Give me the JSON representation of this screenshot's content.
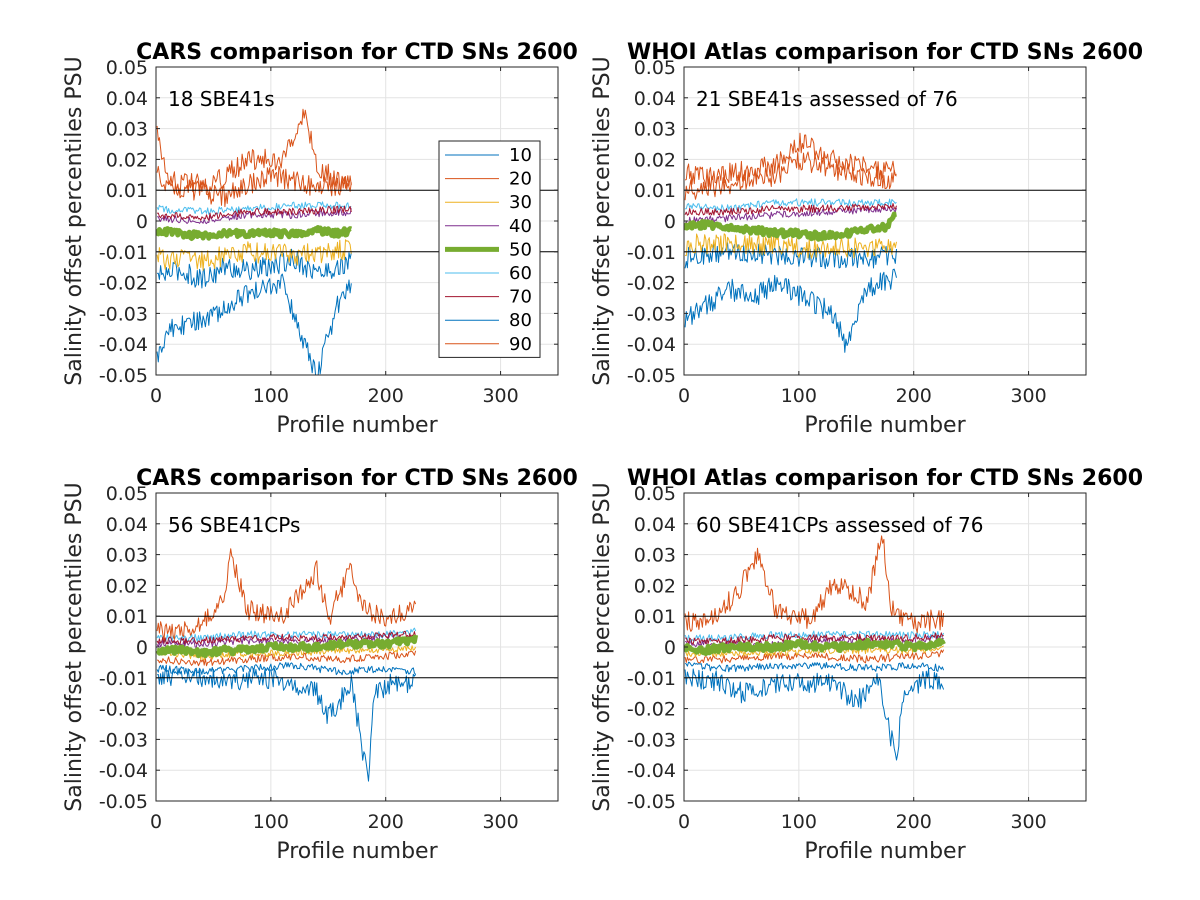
{
  "chart_data": [
    {
      "type": "line",
      "title": "CARS comparison for CTD SNs 2600",
      "xlabel": "Profile number",
      "ylabel": "Salinity offset percentiles PSU",
      "xlim": [
        0,
        350
      ],
      "ylim": [
        -0.05,
        0.05
      ],
      "xticks": [
        "0",
        "100",
        "200",
        "300"
      ],
      "yticks": [
        "-0.05",
        "-0.04",
        "-0.03",
        "-0.02",
        "-0.01",
        "0",
        "0.01",
        "0.02",
        "0.03",
        "0.04",
        "0.05"
      ],
      "grid": true,
      "reference_lines": [
        0.01,
        -0.01
      ],
      "annotation": "18 SBE41s",
      "legend_position": "inside right",
      "x_max_profile": 170,
      "series": [
        {
          "name": "10",
          "color": "#0072BD",
          "width": 1,
          "key_x": [
            0,
            20,
            40,
            60,
            80,
            100,
            120,
            140,
            160,
            170
          ],
          "key_y": [
            -0.018,
            -0.016,
            -0.019,
            -0.015,
            -0.016,
            -0.015,
            -0.012,
            -0.017,
            -0.015,
            -0.013
          ]
        },
        {
          "name": "20",
          "color": "#D95319",
          "width": 1,
          "key_x": [
            0,
            10,
            30,
            60,
            100,
            130,
            150,
            170
          ],
          "key_y": [
            0.015,
            0.012,
            0.01,
            0.008,
            0.015,
            0.012,
            0.011,
            0.012
          ]
        },
        {
          "name": "30",
          "color": "#EDB120",
          "width": 1,
          "key_x": [
            0,
            40,
            80,
            120,
            170
          ],
          "key_y": [
            -0.012,
            -0.013,
            -0.01,
            -0.011,
            -0.009
          ]
        },
        {
          "name": "40",
          "color": "#7E2F8E",
          "width": 1,
          "key_x": [
            0,
            40,
            80,
            120,
            170
          ],
          "key_y": [
            0.001,
            0.0,
            0.002,
            0.002,
            0.003
          ]
        },
        {
          "name": "50",
          "color": "#77AC30",
          "width": 5,
          "key_x": [
            0,
            20,
            40,
            60,
            80,
            100,
            120,
            140,
            160,
            170
          ],
          "key_y": [
            -0.003,
            -0.004,
            -0.005,
            -0.004,
            -0.004,
            -0.004,
            -0.004,
            -0.003,
            -0.004,
            -0.003
          ]
        },
        {
          "name": "60",
          "color": "#4DBEEE",
          "width": 1,
          "key_x": [
            0,
            40,
            80,
            120,
            170
          ],
          "key_y": [
            0.004,
            0.003,
            0.004,
            0.005,
            0.005
          ]
        },
        {
          "name": "70",
          "color": "#A2142F",
          "width": 1,
          "key_x": [
            0,
            40,
            80,
            120,
            170
          ],
          "key_y": [
            0.002,
            0.001,
            0.003,
            0.003,
            0.004
          ]
        },
        {
          "name": "80",
          "color": "#0072BD",
          "width": 1,
          "key_x": [
            0,
            10,
            30,
            50,
            80,
            110,
            130,
            140,
            160,
            170
          ],
          "key_y": [
            -0.045,
            -0.035,
            -0.033,
            -0.03,
            -0.024,
            -0.02,
            -0.04,
            -0.05,
            -0.025,
            -0.022
          ]
        },
        {
          "name": "90",
          "color": "#D95319",
          "width": 1,
          "key_x": [
            0,
            5,
            20,
            50,
            80,
            110,
            130,
            140,
            160,
            170
          ],
          "key_y": [
            0.032,
            0.018,
            0.012,
            0.012,
            0.02,
            0.02,
            0.035,
            0.018,
            0.012,
            0.012
          ]
        }
      ]
    },
    {
      "type": "line",
      "title": "WHOI Atlas comparison for CTD SNs 2600",
      "xlabel": "Profile number",
      "ylabel": "Salinity offset percentiles PSU",
      "xlim": [
        0,
        350
      ],
      "ylim": [
        -0.05,
        0.05
      ],
      "xticks": [
        "0",
        "100",
        "200",
        "300"
      ],
      "yticks": [
        "-0.05",
        "-0.04",
        "-0.03",
        "-0.02",
        "-0.01",
        "0",
        "0.01",
        "0.02",
        "0.03",
        "0.04",
        "0.05"
      ],
      "grid": true,
      "reference_lines": [
        0.01,
        -0.01
      ],
      "annotation": "21 SBE41s assessed of 76",
      "x_max_profile": 185,
      "series": [
        {
          "name": "10",
          "color": "#0072BD",
          "width": 1,
          "key_x": [
            0,
            40,
            80,
            120,
            160,
            185
          ],
          "key_y": [
            -0.012,
            -0.01,
            -0.011,
            -0.012,
            -0.012,
            -0.011
          ]
        },
        {
          "name": "20",
          "color": "#D95319",
          "width": 1,
          "key_x": [
            0,
            40,
            80,
            100,
            140,
            185
          ],
          "key_y": [
            0.01,
            0.012,
            0.015,
            0.02,
            0.016,
            0.013
          ]
        },
        {
          "name": "30",
          "color": "#EDB120",
          "width": 1,
          "key_x": [
            0,
            40,
            80,
            120,
            185
          ],
          "key_y": [
            -0.008,
            -0.007,
            -0.008,
            -0.009,
            -0.008
          ]
        },
        {
          "name": "40",
          "color": "#7E2F8E",
          "width": 1,
          "key_x": [
            0,
            40,
            80,
            120,
            185
          ],
          "key_y": [
            0.0,
            0.001,
            0.002,
            0.003,
            0.004
          ]
        },
        {
          "name": "50",
          "color": "#77AC30",
          "width": 5,
          "key_x": [
            0,
            20,
            40,
            60,
            80,
            100,
            120,
            140,
            160,
            175,
            185
          ],
          "key_y": [
            -0.002,
            -0.001,
            -0.002,
            -0.003,
            -0.004,
            -0.004,
            -0.005,
            -0.004,
            -0.003,
            -0.002,
            0.002
          ]
        },
        {
          "name": "60",
          "color": "#4DBEEE",
          "width": 1,
          "key_x": [
            0,
            40,
            80,
            120,
            185
          ],
          "key_y": [
            0.005,
            0.004,
            0.006,
            0.006,
            0.006
          ]
        },
        {
          "name": "70",
          "color": "#A2142F",
          "width": 1,
          "key_x": [
            0,
            40,
            80,
            120,
            185
          ],
          "key_y": [
            0.003,
            0.003,
            0.004,
            0.004,
            0.005
          ]
        },
        {
          "name": "80",
          "color": "#0072BD",
          "width": 1,
          "key_x": [
            0,
            10,
            40,
            60,
            80,
            100,
            130,
            140,
            160,
            185
          ],
          "key_y": [
            -0.032,
            -0.03,
            -0.022,
            -0.025,
            -0.02,
            -0.024,
            -0.03,
            -0.04,
            -0.022,
            -0.018
          ]
        },
        {
          "name": "90",
          "color": "#D95319",
          "width": 1,
          "key_x": [
            0,
            20,
            50,
            80,
            100,
            130,
            150,
            185
          ],
          "key_y": [
            0.016,
            0.014,
            0.016,
            0.018,
            0.026,
            0.02,
            0.018,
            0.016
          ]
        }
      ]
    },
    {
      "type": "line",
      "title": "CARS comparison for CTD SNs 2600",
      "xlabel": "Profile number",
      "ylabel": "Salinity offset percentiles PSU",
      "xlim": [
        0,
        350
      ],
      "ylim": [
        -0.05,
        0.05
      ],
      "xticks": [
        "0",
        "100",
        "200",
        "300"
      ],
      "yticks": [
        "-0.05",
        "-0.04",
        "-0.03",
        "-0.02",
        "-0.01",
        "0",
        "0.01",
        "0.02",
        "0.03",
        "0.04",
        "0.05"
      ],
      "grid": true,
      "reference_lines": [
        0.01,
        -0.01
      ],
      "annotation": "56 SBE41CPs",
      "x_max_profile": 226,
      "series": [
        {
          "name": "10",
          "color": "#0072BD",
          "width": 1,
          "key_x": [
            0,
            40,
            80,
            120,
            160,
            200,
            226
          ],
          "key_y": [
            -0.007,
            -0.008,
            -0.007,
            -0.006,
            -0.008,
            -0.007,
            -0.008
          ]
        },
        {
          "name": "20",
          "color": "#D95319",
          "width": 1,
          "key_x": [
            0,
            40,
            80,
            120,
            160,
            200,
            226
          ],
          "key_y": [
            -0.004,
            -0.005,
            -0.004,
            -0.003,
            -0.004,
            -0.003,
            -0.002
          ]
        },
        {
          "name": "30",
          "color": "#EDB120",
          "width": 1,
          "key_x": [
            0,
            40,
            80,
            120,
            160,
            200,
            226
          ],
          "key_y": [
            -0.002,
            -0.003,
            -0.002,
            -0.002,
            -0.001,
            -0.001,
            0.0
          ]
        },
        {
          "name": "40",
          "color": "#7E2F8E",
          "width": 1,
          "key_x": [
            0,
            40,
            80,
            120,
            160,
            200,
            226
          ],
          "key_y": [
            0.001,
            0.001,
            0.002,
            0.002,
            0.002,
            0.003,
            0.003
          ]
        },
        {
          "name": "50",
          "color": "#77AC30",
          "width": 5,
          "key_x": [
            0,
            20,
            40,
            60,
            80,
            100,
            120,
            140,
            160,
            180,
            200,
            220,
            226
          ],
          "key_y": [
            -0.001,
            -0.001,
            -0.002,
            -0.001,
            -0.001,
            0.0,
            0.0,
            0.0,
            0.001,
            0.001,
            0.001,
            0.002,
            0.003
          ]
        },
        {
          "name": "60",
          "color": "#4DBEEE",
          "width": 1,
          "key_x": [
            0,
            40,
            80,
            120,
            160,
            200,
            226
          ],
          "key_y": [
            0.003,
            0.003,
            0.004,
            0.004,
            0.004,
            0.004,
            0.005
          ]
        },
        {
          "name": "70",
          "color": "#A2142F",
          "width": 1,
          "key_x": [
            0,
            40,
            80,
            120,
            160,
            200,
            226
          ],
          "key_y": [
            0.002,
            0.002,
            0.003,
            0.003,
            0.003,
            0.004,
            0.004
          ]
        },
        {
          "name": "80",
          "color": "#0072BD",
          "width": 1,
          "key_x": [
            0,
            40,
            60,
            100,
            140,
            150,
            170,
            185,
            190,
            210,
            226
          ],
          "key_y": [
            -0.009,
            -0.01,
            -0.011,
            -0.01,
            -0.015,
            -0.023,
            -0.012,
            -0.044,
            -0.015,
            -0.011,
            -0.012
          ]
        },
        {
          "name": "90",
          "color": "#D95319",
          "width": 1,
          "key_x": [
            0,
            40,
            60,
            65,
            80,
            110,
            140,
            150,
            170,
            180,
            200,
            226
          ],
          "key_y": [
            0.005,
            0.007,
            0.018,
            0.031,
            0.012,
            0.01,
            0.025,
            0.009,
            0.026,
            0.012,
            0.01,
            0.013
          ]
        }
      ]
    },
    {
      "type": "line",
      "title": "WHOI Atlas comparison for CTD SNs 2600",
      "xlabel": "Profile number",
      "ylabel": "Salinity offset percentiles PSU",
      "xlim": [
        0,
        350
      ],
      "ylim": [
        -0.05,
        0.05
      ],
      "xticks": [
        "0",
        "100",
        "200",
        "300"
      ],
      "yticks": [
        "-0.05",
        "-0.04",
        "-0.03",
        "-0.02",
        "-0.01",
        "0",
        "0.01",
        "0.02",
        "0.03",
        "0.04",
        "0.05"
      ],
      "grid": true,
      "reference_lines": [
        0.01,
        -0.01
      ],
      "annotation": "60 SBE41CPs assessed of 76",
      "x_max_profile": 226,
      "series": [
        {
          "name": "10",
          "color": "#0072BD",
          "width": 1,
          "key_x": [
            0,
            40,
            80,
            120,
            160,
            200,
            226
          ],
          "key_y": [
            -0.006,
            -0.007,
            -0.006,
            -0.006,
            -0.007,
            -0.006,
            -0.007
          ]
        },
        {
          "name": "20",
          "color": "#D95319",
          "width": 1,
          "key_x": [
            0,
            40,
            80,
            120,
            160,
            200,
            226
          ],
          "key_y": [
            -0.004,
            -0.004,
            -0.003,
            -0.003,
            -0.004,
            -0.003,
            -0.002
          ]
        },
        {
          "name": "30",
          "color": "#EDB120",
          "width": 1,
          "key_x": [
            0,
            40,
            80,
            120,
            160,
            200,
            226
          ],
          "key_y": [
            -0.002,
            -0.002,
            -0.002,
            -0.001,
            -0.001,
            -0.001,
            0.0
          ]
        },
        {
          "name": "40",
          "color": "#7E2F8E",
          "width": 1,
          "key_x": [
            0,
            40,
            80,
            120,
            160,
            200,
            226
          ],
          "key_y": [
            0.001,
            0.001,
            0.001,
            0.002,
            0.002,
            0.002,
            0.003
          ]
        },
        {
          "name": "50",
          "color": "#77AC30",
          "width": 5,
          "key_x": [
            0,
            20,
            40,
            60,
            80,
            100,
            120,
            140,
            160,
            180,
            200,
            220,
            226
          ],
          "key_y": [
            0.0,
            -0.001,
            0.0,
            0.0,
            0.0,
            0.001,
            0.0,
            0.0,
            0.001,
            0.001,
            0.0,
            0.001,
            0.002
          ]
        },
        {
          "name": "60",
          "color": "#4DBEEE",
          "width": 1,
          "key_x": [
            0,
            40,
            80,
            120,
            160,
            200,
            226
          ],
          "key_y": [
            0.003,
            0.003,
            0.004,
            0.004,
            0.004,
            0.004,
            0.004
          ]
        },
        {
          "name": "70",
          "color": "#A2142F",
          "width": 1,
          "key_x": [
            0,
            40,
            80,
            120,
            160,
            200,
            226
          ],
          "key_y": [
            0.002,
            0.002,
            0.003,
            0.003,
            0.003,
            0.003,
            0.004
          ]
        },
        {
          "name": "80",
          "color": "#0072BD",
          "width": 1,
          "key_x": [
            0,
            30,
            50,
            90,
            130,
            150,
            170,
            185,
            190,
            210,
            226
          ],
          "key_y": [
            -0.01,
            -0.011,
            -0.015,
            -0.011,
            -0.012,
            -0.018,
            -0.01,
            -0.038,
            -0.015,
            -0.01,
            -0.011
          ]
        },
        {
          "name": "90",
          "color": "#D95319",
          "width": 1,
          "key_x": [
            0,
            30,
            50,
            65,
            80,
            110,
            130,
            140,
            160,
            172,
            180,
            200,
            226
          ],
          "key_y": [
            0.008,
            0.01,
            0.02,
            0.03,
            0.012,
            0.009,
            0.02,
            0.02,
            0.014,
            0.038,
            0.012,
            0.008,
            0.009
          ]
        }
      ]
    }
  ]
}
